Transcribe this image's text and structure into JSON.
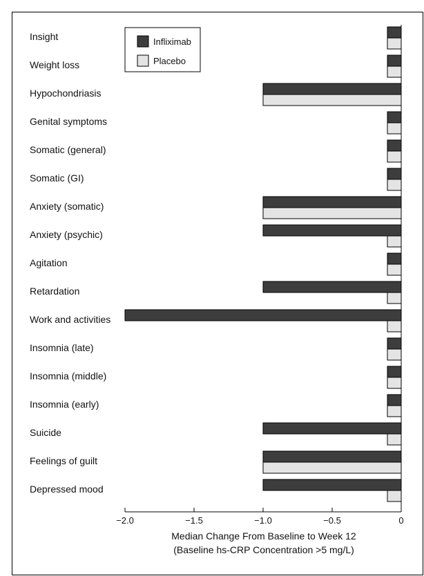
{
  "chart_data": {
    "type": "bar",
    "orientation": "horizontal",
    "categories": [
      "Insight",
      "Weight loss",
      "Hypochondriasis",
      "Genital symptoms",
      "Somatic (general)",
      "Somatic (GI)",
      "Anxiety (somatic)",
      "Anxiety (psychic)",
      "Agitation",
      "Retardation",
      "Work and activities",
      "Insomnia (late)",
      "Insomnia (middle)",
      "Insomnia (early)",
      "Suicide",
      "Feelings of guilt",
      "Depressed mood"
    ],
    "series": [
      {
        "name": "Infliximab",
        "color": "#3d3d3d",
        "values": [
          -0.1,
          -0.1,
          -1.0,
          -0.1,
          -0.1,
          -0.1,
          -1.0,
          -1.0,
          -0.1,
          -1.0,
          -2.0,
          -0.1,
          -0.1,
          -0.1,
          -1.0,
          -1.0,
          -1.0
        ]
      },
      {
        "name": "Placebo",
        "color": "#e4e4e4",
        "values": [
          -0.1,
          -0.1,
          -1.0,
          -0.1,
          -0.1,
          -0.1,
          -1.0,
          -0.1,
          -0.1,
          -0.1,
          -0.1,
          -0.1,
          -0.1,
          -0.1,
          -0.1,
          -1.0,
          -0.1
        ]
      }
    ],
    "xlim": [
      -2.0,
      0
    ],
    "xticks": [
      -2.0,
      -1.5,
      -1.0,
      -0.5,
      0
    ],
    "xtick_labels": [
      "−2.0",
      "−1.5",
      "−1.0",
      "−0.5",
      "0"
    ],
    "xlabel": "Median Change From Baseline to Week 12",
    "xlabel_line2": "(Baseline hs-CRP Concentration >5 mg/L)",
    "legend_position": "top-left",
    "grid": false
  }
}
